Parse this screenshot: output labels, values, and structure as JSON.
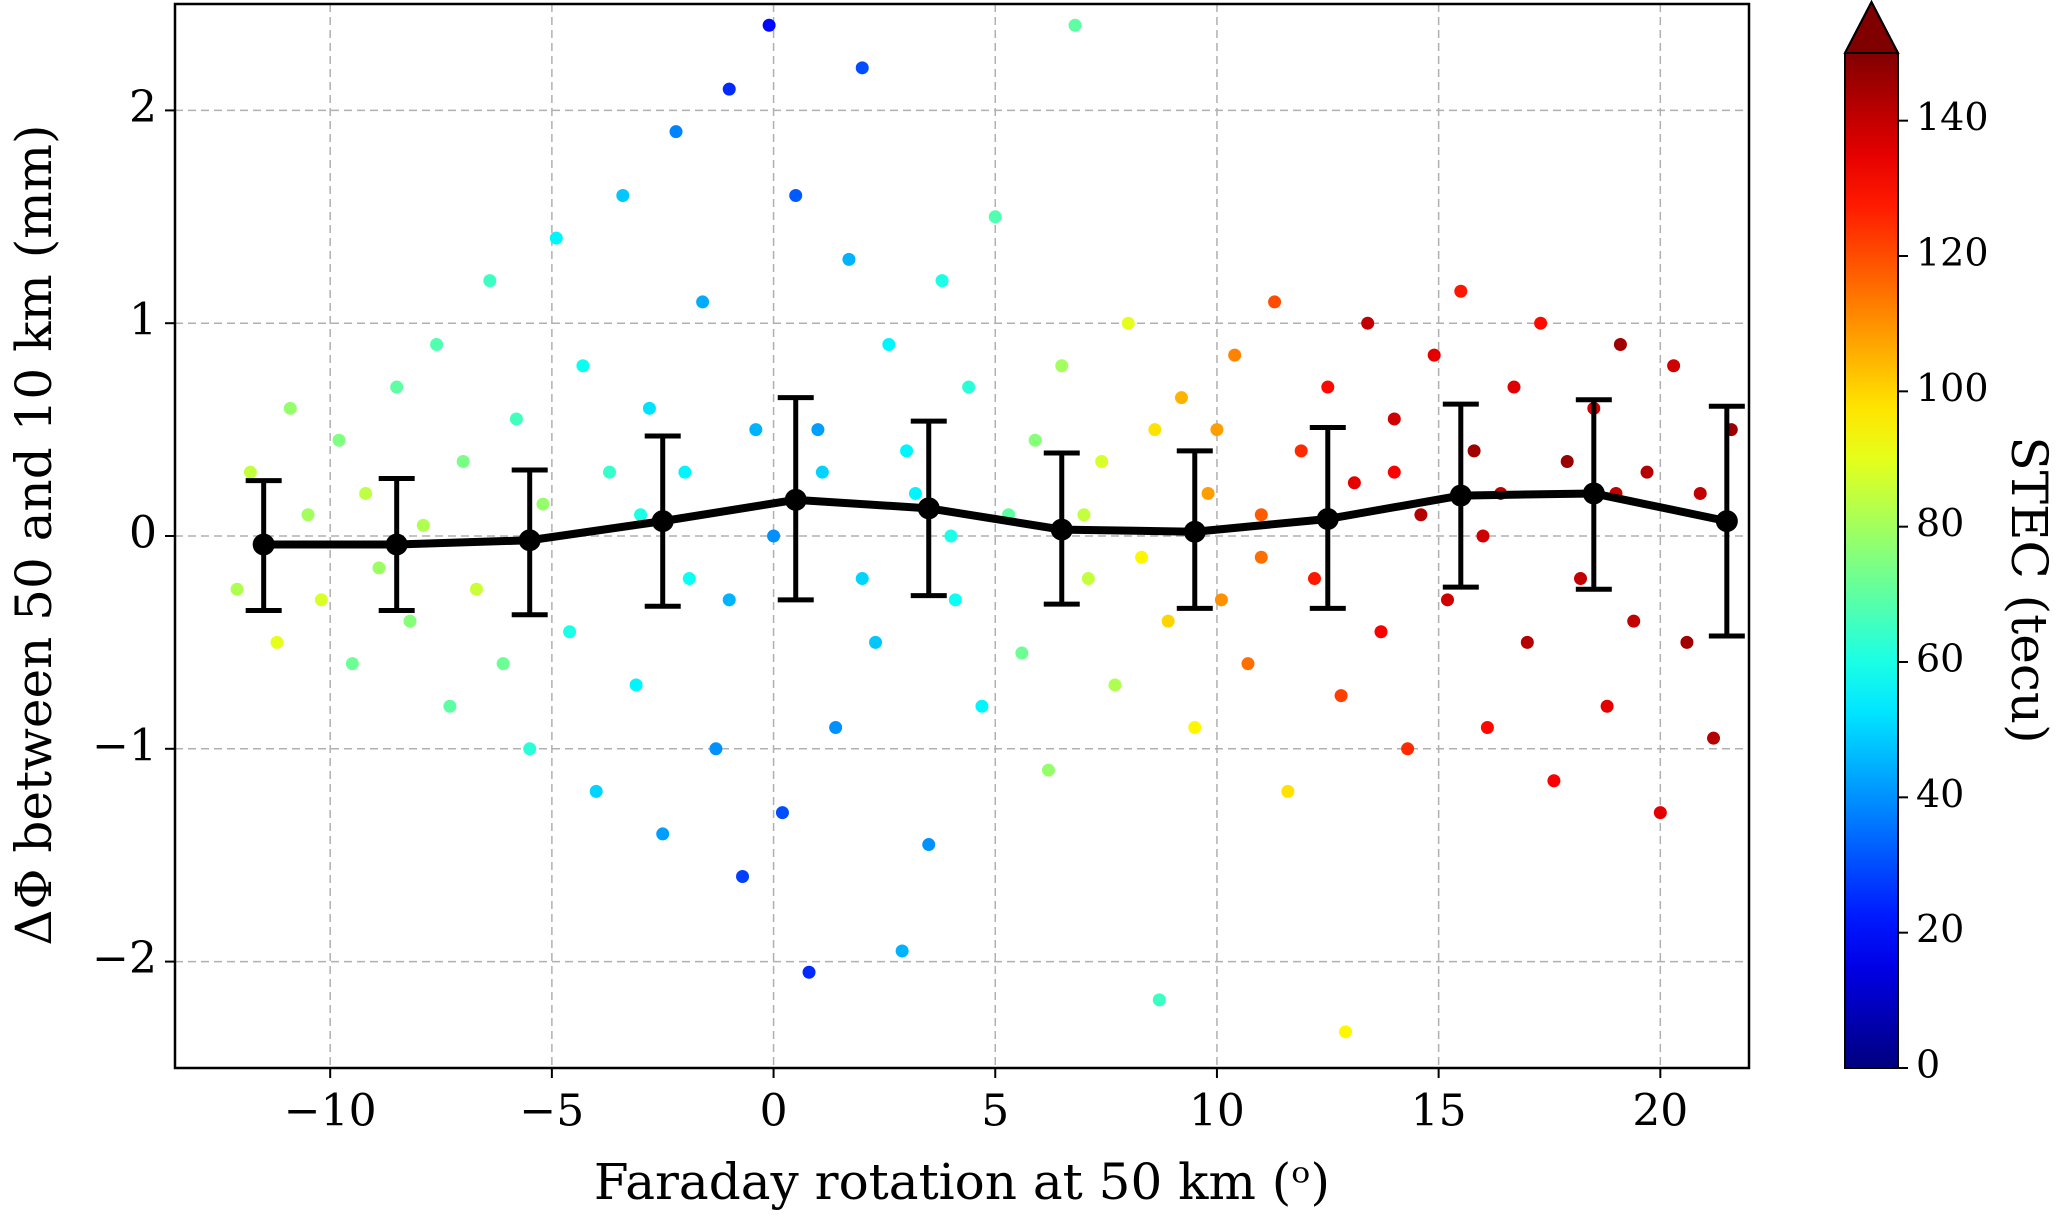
{
  "chart_data": {
    "type": "scatter",
    "xlabel": "Faraday rotation at 50 km (ᵒ)",
    "ylabel": "ΔΦ between 50 and 10 km (mm)",
    "colorbar_label": "STEC (tecu)",
    "colormap": "jet",
    "colorbar_extend": "max",
    "clim": [
      0,
      150
    ],
    "cticks": [
      0,
      20,
      40,
      60,
      80,
      100,
      120,
      140
    ],
    "xlim": [
      -13.5,
      22
    ],
    "ylim": [
      -2.5,
      2.5
    ],
    "xticks": [
      {
        "value": -10,
        "label": "−10"
      },
      {
        "value": -5,
        "label": "−5"
      },
      0,
      5,
      10,
      15,
      20
    ],
    "yticks": [
      {
        "value": -2,
        "label": "−2"
      },
      {
        "value": -1,
        "label": "−1"
      },
      0,
      1,
      2
    ],
    "grid": true,
    "x": [
      -12.1,
      -11.8,
      -11.2,
      -10.9,
      -10.5,
      -10.2,
      -9.8,
      -9.5,
      -9.2,
      -8.9,
      -8.5,
      -8.2,
      -7.9,
      -7.6,
      -7.3,
      -7.0,
      -6.7,
      -6.4,
      -6.1,
      -5.8,
      -5.5,
      -5.2,
      -4.9,
      -4.6,
      -4.3,
      -4.0,
      -3.7,
      -3.4,
      -3.1,
      -2.8,
      -2.5,
      -2.2,
      -1.9,
      -1.6,
      -1.3,
      -1.0,
      -0.7,
      -0.4,
      -0.1,
      0.2,
      0.5,
      0.8,
      1.1,
      1.4,
      1.7,
      2.0,
      2.3,
      2.6,
      2.9,
      3.2,
      3.5,
      3.8,
      4.1,
      4.4,
      4.7,
      5.0,
      5.3,
      5.6,
      5.9,
      6.2,
      6.5,
      6.8,
      7.1,
      7.4,
      7.7,
      8.0,
      8.3,
      8.6,
      8.7,
      8.9,
      9.2,
      9.5,
      9.8,
      10.1,
      10.4,
      10.7,
      11.0,
      11.3,
      11.6,
      11.9,
      12.2,
      12.5,
      12.8,
      12.9,
      13.1,
      13.4,
      13.7,
      14.0,
      14.3,
      14.6,
      14.9,
      15.2,
      15.5,
      15.8,
      16.1,
      16.4,
      16.7,
      17.0,
      17.3,
      17.6,
      17.9,
      18.2,
      18.5,
      18.8,
      19.1,
      19.4,
      19.7,
      20.0,
      20.3,
      20.6,
      20.9,
      21.2,
      21.6,
      -3,
      -2,
      -1,
      0,
      1,
      2,
      3,
      4,
      7,
      10,
      11,
      14,
      16,
      19
    ],
    "values": [
      -0.25,
      0.3,
      -0.5,
      0.6,
      0.1,
      -0.3,
      0.45,
      -0.6,
      0.2,
      -0.15,
      0.7,
      -0.4,
      0.05,
      0.9,
      -0.8,
      0.35,
      -0.25,
      1.2,
      -0.6,
      0.55,
      -1.0,
      0.15,
      1.4,
      -0.45,
      0.8,
      -1.2,
      0.3,
      1.6,
      -0.7,
      0.6,
      -1.4,
      1.9,
      -0.2,
      1.1,
      -1.0,
      2.1,
      -1.6,
      0.5,
      2.4,
      -1.3,
      1.6,
      -2.05,
      0.3,
      -0.9,
      1.3,
      2.2,
      -0.5,
      0.9,
      -1.95,
      0.2,
      -1.45,
      1.2,
      -0.3,
      0.7,
      -0.8,
      1.5,
      0.1,
      -0.55,
      0.45,
      -1.1,
      0.8,
      2.4,
      -0.2,
      0.35,
      -0.7,
      1.0,
      -0.1,
      0.5,
      -2.18,
      -0.4,
      0.65,
      -0.9,
      0.2,
      -0.3,
      0.85,
      -0.6,
      0.1,
      1.1,
      -1.2,
      0.4,
      -0.2,
      0.7,
      -0.75,
      -2.33,
      0.25,
      1.0,
      -0.45,
      0.55,
      -1.0,
      0.1,
      0.85,
      -0.3,
      1.15,
      0.4,
      -0.9,
      0.2,
      0.7,
      -0.5,
      1.0,
      -1.15,
      0.35,
      -0.2,
      0.6,
      -0.8,
      0.9,
      -0.4,
      0.3,
      -1.3,
      0.8,
      -0.5,
      0.2,
      -0.95,
      0.5,
      0.1,
      0.3,
      -0.3,
      0.0,
      0.5,
      -0.2,
      0.4,
      0.0,
      0.1,
      0.5,
      -0.1,
      0.3,
      0.0,
      0.2
    ],
    "stec": [
      82,
      85,
      90,
      78,
      80,
      88,
      75,
      72,
      84,
      79,
      70,
      76,
      82,
      68,
      70,
      74,
      86,
      65,
      72,
      66,
      62,
      78,
      55,
      60,
      58,
      50,
      64,
      48,
      55,
      52,
      42,
      38,
      58,
      44,
      40,
      25,
      28,
      45,
      20,
      30,
      32,
      25,
      50,
      40,
      45,
      30,
      48,
      55,
      45,
      55,
      40,
      60,
      58,
      62,
      55,
      68,
      70,
      72,
      76,
      78,
      80,
      70,
      85,
      88,
      82,
      90,
      95,
      98,
      65,
      100,
      105,
      95,
      108,
      110,
      112,
      115,
      118,
      120,
      98,
      125,
      128,
      130,
      122,
      95,
      135,
      140,
      132,
      138,
      125,
      142,
      135,
      138,
      128,
      145,
      130,
      140,
      136,
      142,
      130,
      132,
      146,
      140,
      138,
      135,
      145,
      140,
      142,
      135,
      138,
      145,
      140,
      142,
      146,
      60,
      55,
      45,
      40,
      42,
      50,
      55,
      60,
      85,
      108,
      115,
      132,
      138,
      140
    ],
    "mean": {
      "color": "#000000",
      "x": [
        -11.5,
        -8.5,
        -5.5,
        -2.5,
        0.5,
        3.5,
        6.5,
        9.5,
        12.5,
        15.5,
        18.5,
        21.5
      ],
      "values": [
        -0.04,
        -0.04,
        -0.02,
        0.07,
        0.17,
        0.13,
        0.03,
        0.02,
        0.08,
        0.19,
        0.2,
        0.07
      ],
      "lower": [
        -0.35,
        -0.35,
        -0.37,
        -0.33,
        -0.3,
        -0.28,
        -0.32,
        -0.34,
        -0.34,
        -0.24,
        -0.25,
        -0.47
      ],
      "upper": [
        0.26,
        0.27,
        0.31,
        0.47,
        0.65,
        0.54,
        0.39,
        0.4,
        0.51,
        0.62,
        0.64,
        0.61
      ]
    }
  }
}
